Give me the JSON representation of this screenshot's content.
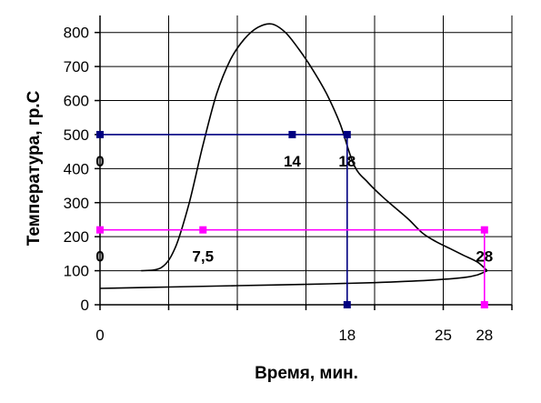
{
  "chart_data": {
    "type": "line",
    "xlabel": "Время, мин.",
    "ylabel": "Температура, гр.С",
    "xlim": [
      0,
      30
    ],
    "ylim": [
      0,
      850
    ],
    "grid": true,
    "x_ticks": [
      0,
      5,
      10,
      15,
      20,
      25,
      30
    ],
    "x_tick_labels": [
      {
        "x": 0,
        "label": "0"
      },
      {
        "x": 18,
        "label": "18"
      },
      {
        "x": 25,
        "label": "25"
      },
      {
        "x": 28,
        "label": "28"
      }
    ],
    "y_ticks": [
      0,
      100,
      200,
      300,
      400,
      500,
      600,
      700,
      800
    ],
    "y_tick_labels": [
      "0",
      "100",
      "200",
      "300",
      "400",
      "500",
      "600",
      "700",
      "800"
    ],
    "colors": {
      "curve": "#000000",
      "blue": "#000080",
      "magenta": "#ff00ff",
      "grid": "#000000"
    },
    "series": [
      {
        "style": "curve",
        "color": "#000000",
        "points": [
          [
            3,
            100
          ],
          [
            4.5,
            110
          ],
          [
            5.5,
            170
          ],
          [
            6.5,
            300
          ],
          [
            7.5,
            470
          ],
          [
            8.5,
            620
          ],
          [
            9.5,
            720
          ],
          [
            10.5,
            780
          ],
          [
            11.5,
            815
          ],
          [
            12.5,
            825
          ],
          [
            13.5,
            800
          ],
          [
            14.5,
            750
          ],
          [
            15.5,
            690
          ],
          [
            16.5,
            620
          ],
          [
            17.5,
            530
          ],
          [
            18.5,
            410
          ],
          [
            19.5,
            360
          ],
          [
            20.5,
            320
          ],
          [
            21.5,
            285
          ],
          [
            22.5,
            250
          ],
          [
            23.5,
            210
          ],
          [
            24.5,
            185
          ],
          [
            25.5,
            165
          ],
          [
            26.5,
            145
          ],
          [
            27.5,
            125
          ],
          [
            28.2,
            100
          ]
        ]
      },
      {
        "style": "curve",
        "color": "#000000",
        "points": [
          [
            0,
            48
          ],
          [
            5,
            52
          ],
          [
            10,
            56
          ],
          [
            15,
            60
          ],
          [
            20,
            65
          ],
          [
            24,
            72
          ],
          [
            26.5,
            80
          ],
          [
            27.5,
            88
          ],
          [
            28.2,
            100
          ]
        ]
      },
      {
        "style": "marker-line",
        "color": "#000080",
        "points": [
          [
            0,
            500
          ],
          [
            14,
            500
          ],
          [
            18,
            500
          ],
          [
            18,
            0
          ]
        ]
      },
      {
        "style": "marker-line",
        "color": "#ff00ff",
        "points": [
          [
            0,
            220
          ],
          [
            7.5,
            220
          ],
          [
            28,
            220
          ],
          [
            28,
            0
          ]
        ]
      }
    ],
    "annotations": [
      {
        "text": "0",
        "x": 0,
        "y": 500
      },
      {
        "text": "14",
        "x": 14,
        "y": 500
      },
      {
        "text": "18",
        "x": 18,
        "y": 500
      },
      {
        "text": "0",
        "x": 0,
        "y": 220
      },
      {
        "text": "7,5",
        "x": 7.5,
        "y": 220
      },
      {
        "text": "28",
        "x": 28,
        "y": 220
      }
    ]
  }
}
